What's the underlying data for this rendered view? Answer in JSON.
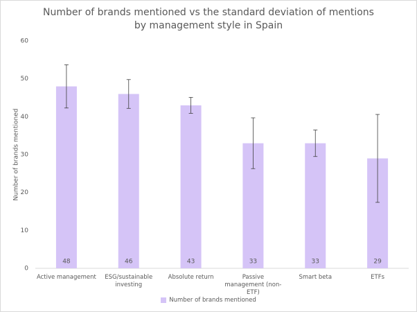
{
  "chart_data": {
    "type": "bar",
    "title": "Number of brands mentioned vs the standard deviation of mentions by management style in Spain",
    "y_label": "Number of brands mentioned",
    "categories": [
      "Active management",
      "ESG/sustainable investing",
      "Absolute return",
      "Passive management (non-ETF)",
      "Smart beta",
      "ETFs"
    ],
    "series": [
      {
        "name": "Number of brands mentioned",
        "color": "#d5c4f7",
        "values": [
          48,
          46,
          43,
          33,
          33,
          29
        ],
        "errors": [
          5.7,
          3.8,
          2.1,
          6.7,
          3.5,
          11.6
        ]
      }
    ],
    "ylim": [
      0,
      60
    ],
    "yticks": [
      0,
      10,
      20,
      30,
      40,
      50,
      60
    ],
    "legend": "bottom",
    "grid": false
  }
}
